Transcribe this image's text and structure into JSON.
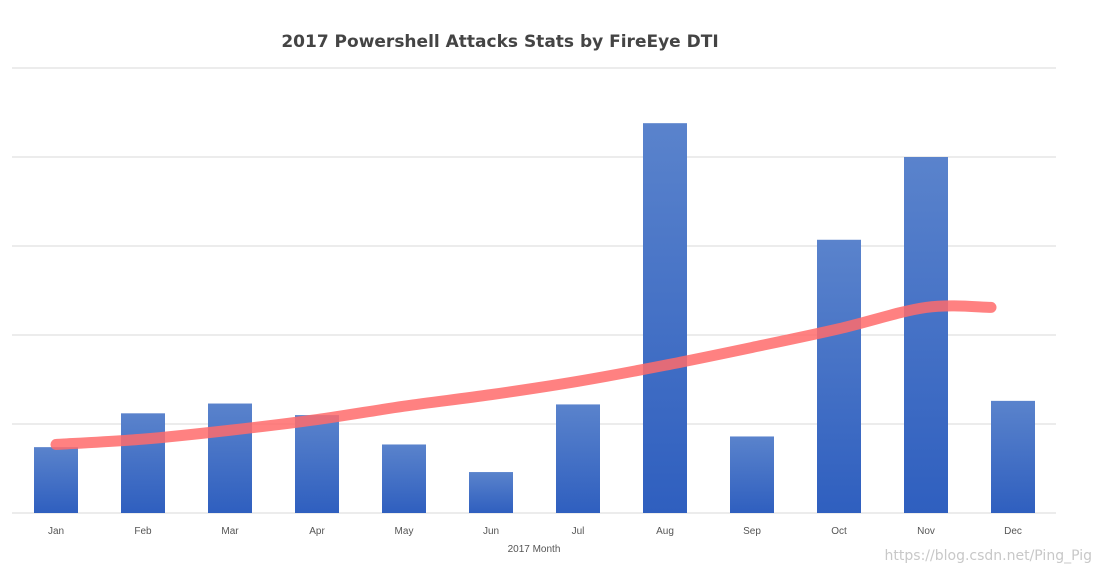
{
  "chart_data": {
    "type": "bar",
    "title": "2017 Powershell Attacks Stats by FireEye DTI",
    "xlabel": "2017 Month",
    "ylabel": "",
    "categories": [
      "Jan",
      "Feb",
      "Mar",
      "Apr",
      "May",
      "Jun",
      "Jul",
      "Aug",
      "Sep",
      "Oct",
      "Nov",
      "Dec"
    ],
    "values": [
      0.74,
      1.12,
      1.23,
      1.1,
      0.77,
      0.46,
      1.22,
      4.38,
      0.86,
      3.07,
      4.0,
      1.26
    ],
    "ylim": [
      0,
      5
    ],
    "y_tick_labels_shown": false,
    "grid": true,
    "bar_color": "#4472c4",
    "trendline": {
      "type": "exponential",
      "color": "#ff6b6b",
      "values": [
        0.77,
        0.83,
        0.93,
        1.05,
        1.2,
        1.33,
        1.48,
        1.66,
        1.86,
        2.07,
        2.31,
        2.31
      ]
    }
  },
  "watermark": "https://blog.csdn.net/Ping_Pig"
}
